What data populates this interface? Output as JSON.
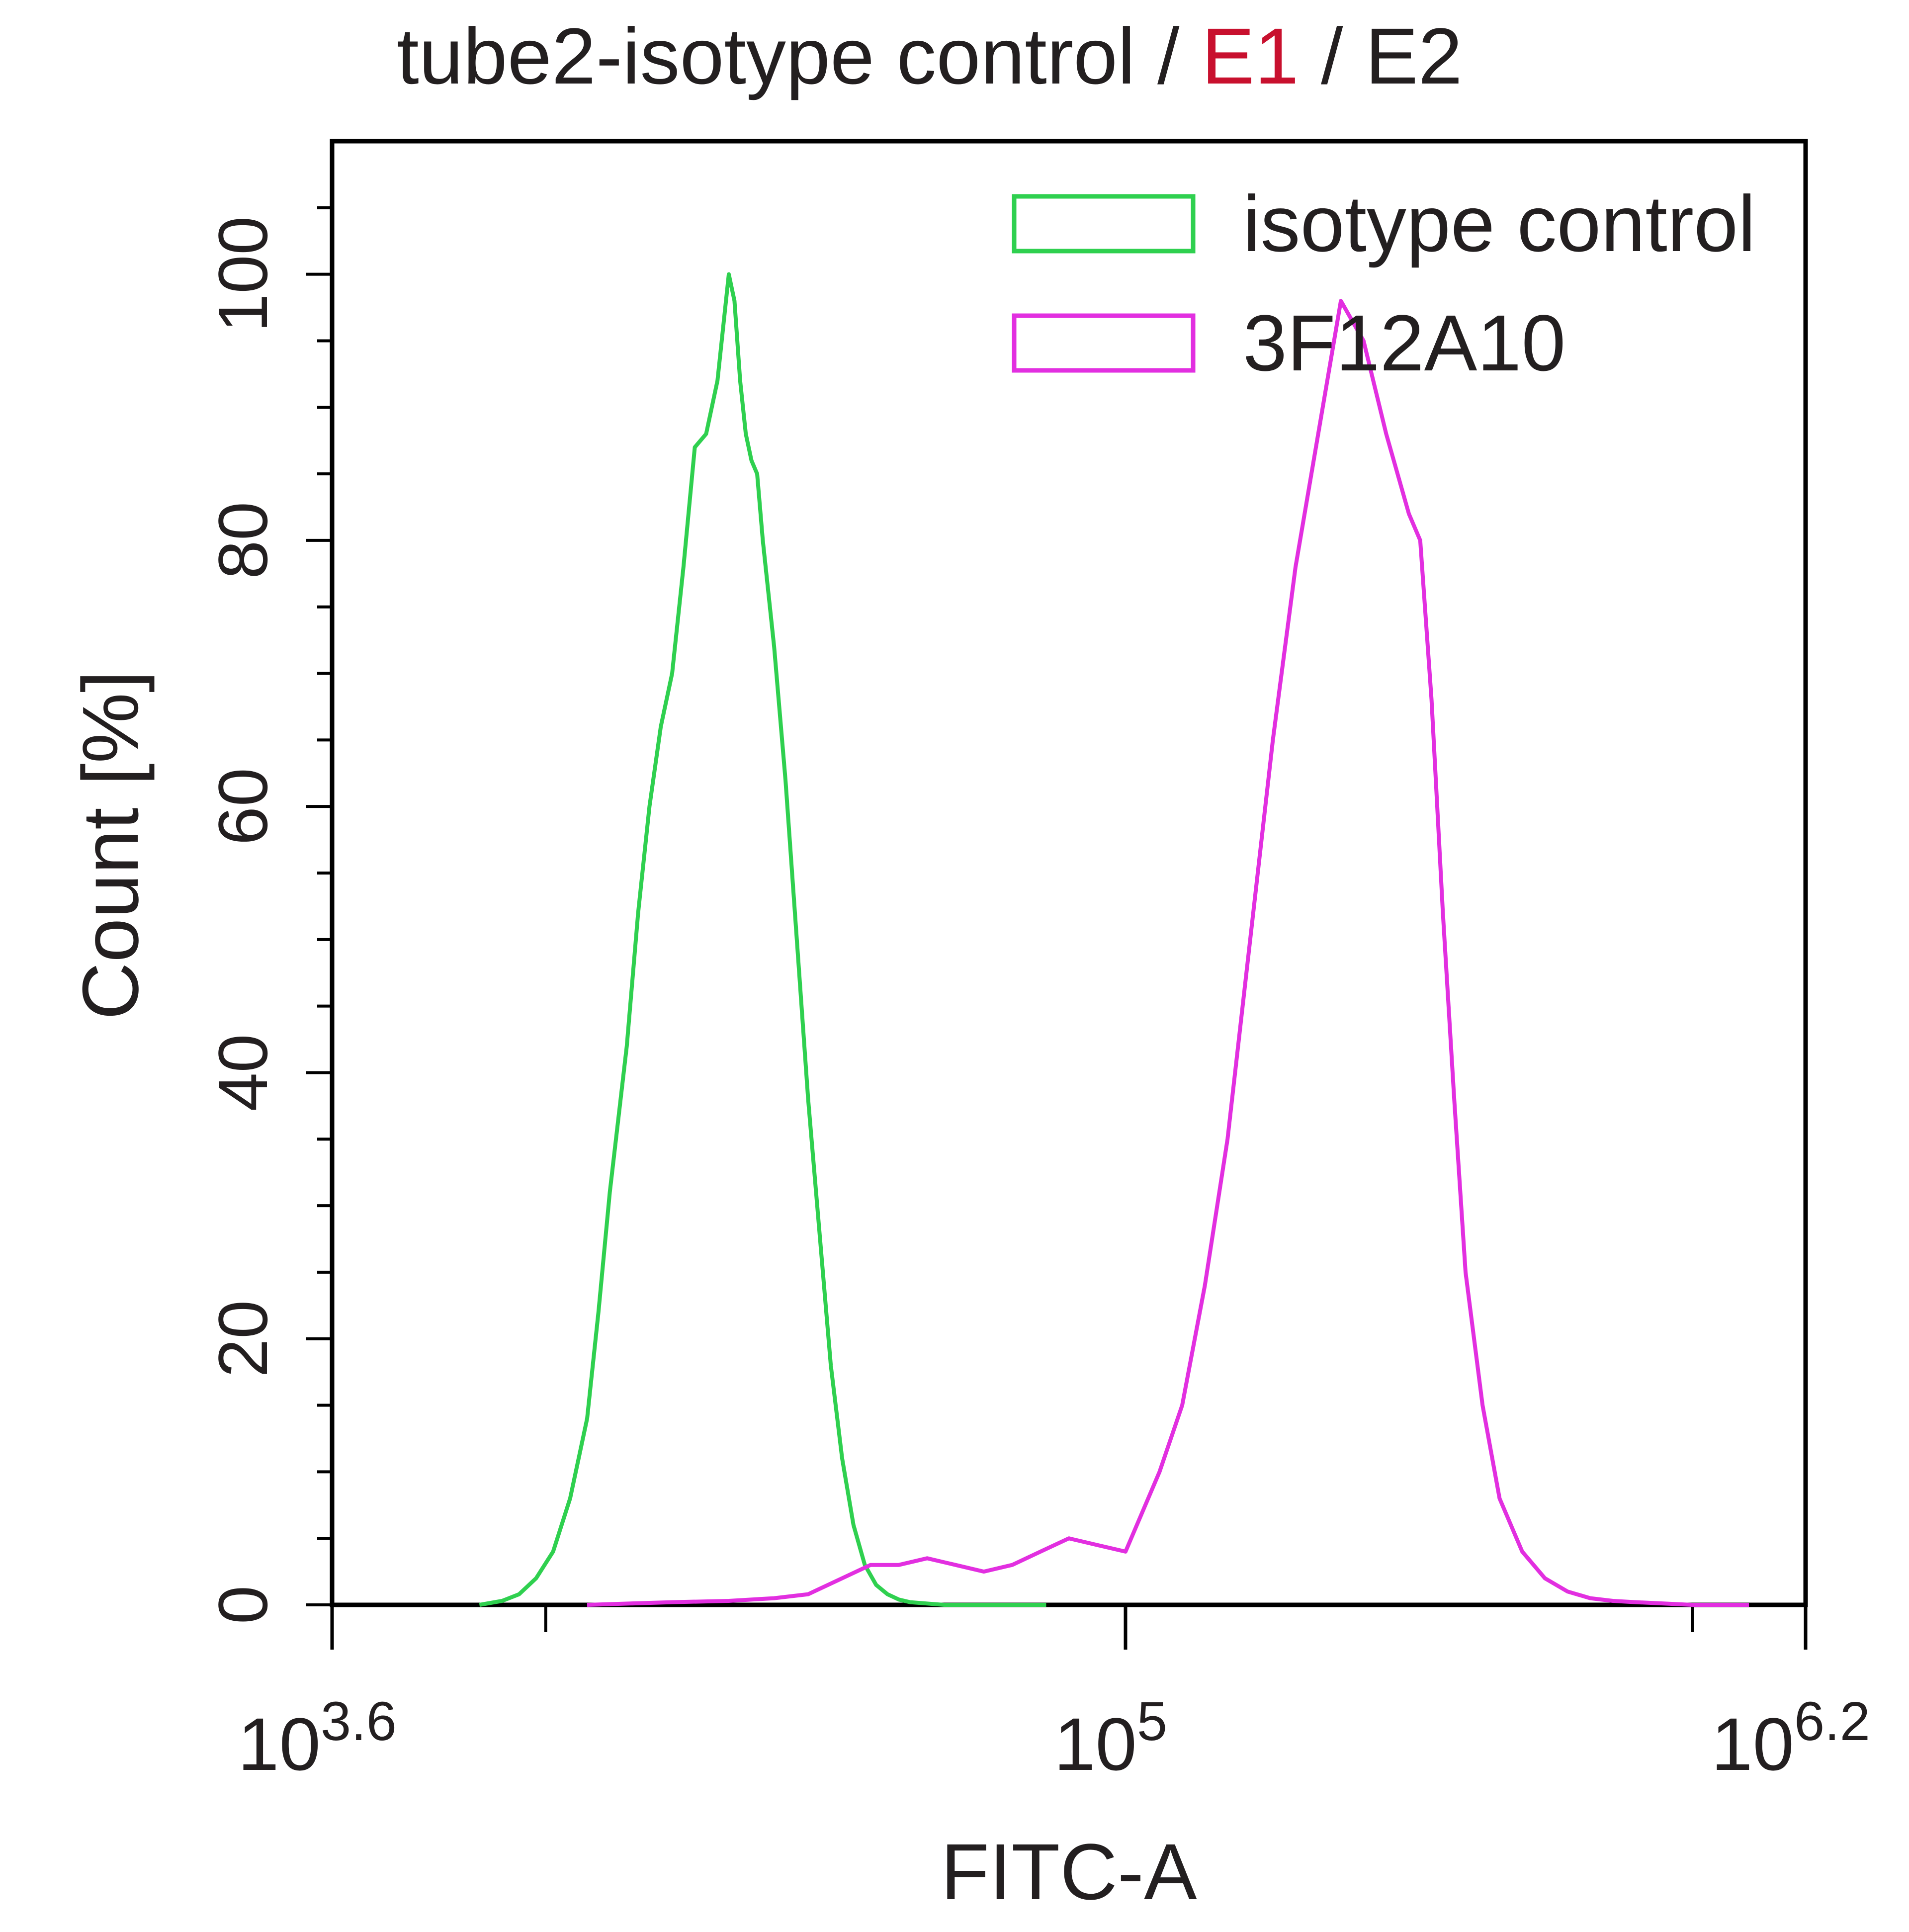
{
  "chart_data": {
    "type": "line",
    "title": {
      "parts": [
        {
          "text": "tube2-isotype control / ",
          "color": "#231f20"
        },
        {
          "text": "E1",
          "color": "#c8102e"
        },
        {
          "text": " / ",
          "color": "#231f20"
        },
        {
          "text": "E2",
          "color": "#231f20"
        }
      ]
    },
    "xlabel": "FITC-A",
    "ylabel": "Count [%]",
    "x_scale": "log10",
    "x_exponent_range": [
      3.6,
      6.2
    ],
    "x_ticks": [
      {
        "base": "10",
        "exp": "3.6",
        "value": 3.6
      },
      {
        "base": "10",
        "exp": "5",
        "value": 5.0
      },
      {
        "base": "10",
        "exp": "6.2",
        "value": 6.2
      }
    ],
    "x_minor_tick_exponents": [
      3.977,
      6.0
    ],
    "ylim": [
      0,
      110
    ],
    "y_ticks": [
      "0",
      "20",
      "40",
      "60",
      "80",
      "100"
    ],
    "grid": false,
    "legend": {
      "position": "top-right"
    },
    "series": [
      {
        "name": "isotype control",
        "color": "#2fd04f",
        "x": [
          3.86,
          3.9,
          3.93,
          3.96,
          3.99,
          4.02,
          4.05,
          4.07,
          4.09,
          4.12,
          4.14,
          4.16,
          4.18,
          4.2,
          4.22,
          4.24,
          4.26,
          4.28,
          4.29,
          4.3,
          4.31,
          4.32,
          4.33,
          4.34,
          4.35,
          4.36,
          4.38,
          4.4,
          4.42,
          4.44,
          4.46,
          4.48,
          4.5,
          4.52,
          4.54,
          4.56,
          4.58,
          4.6,
          4.62,
          4.65,
          4.68,
          4.72,
          4.76,
          4.8,
          4.86
        ],
        "y": [
          0,
          0.3,
          0.8,
          2,
          4,
          8,
          14,
          22,
          31,
          42,
          52,
          60,
          66,
          70,
          78,
          87,
          88,
          92,
          96,
          100,
          98,
          92,
          88,
          86,
          85,
          80,
          72,
          62,
          50,
          38,
          28,
          18,
          11,
          6,
          3,
          1.5,
          0.8,
          0.4,
          0.2,
          0.1,
          0,
          0,
          0,
          0,
          0
        ]
      },
      {
        "name": "3F12A10",
        "color": "#e22fe0",
        "x": [
          4.05,
          4.2,
          4.3,
          4.38,
          4.44,
          4.5,
          4.55,
          4.6,
          4.65,
          4.7,
          4.75,
          4.8,
          4.85,
          4.9,
          4.95,
          5.0,
          5.03,
          5.06,
          5.1,
          5.14,
          5.18,
          5.22,
          5.26,
          5.3,
          5.34,
          5.38,
          5.42,
          5.46,
          5.5,
          5.52,
          5.54,
          5.56,
          5.58,
          5.6,
          5.63,
          5.66,
          5.7,
          5.74,
          5.78,
          5.82,
          5.86,
          5.9,
          5.95,
          6.0,
          6.05,
          6.1
        ],
        "y": [
          0,
          0.2,
          0.3,
          0.5,
          0.8,
          2,
          3,
          3,
          3.5,
          3,
          2.5,
          3,
          4,
          5,
          4.5,
          4,
          7,
          10,
          15,
          24,
          35,
          50,
          65,
          78,
          88,
          98,
          95,
          88,
          82,
          80,
          68,
          52,
          38,
          25,
          15,
          8,
          4,
          2,
          1,
          0.5,
          0.3,
          0.2,
          0.1,
          0,
          0,
          0
        ]
      }
    ]
  }
}
